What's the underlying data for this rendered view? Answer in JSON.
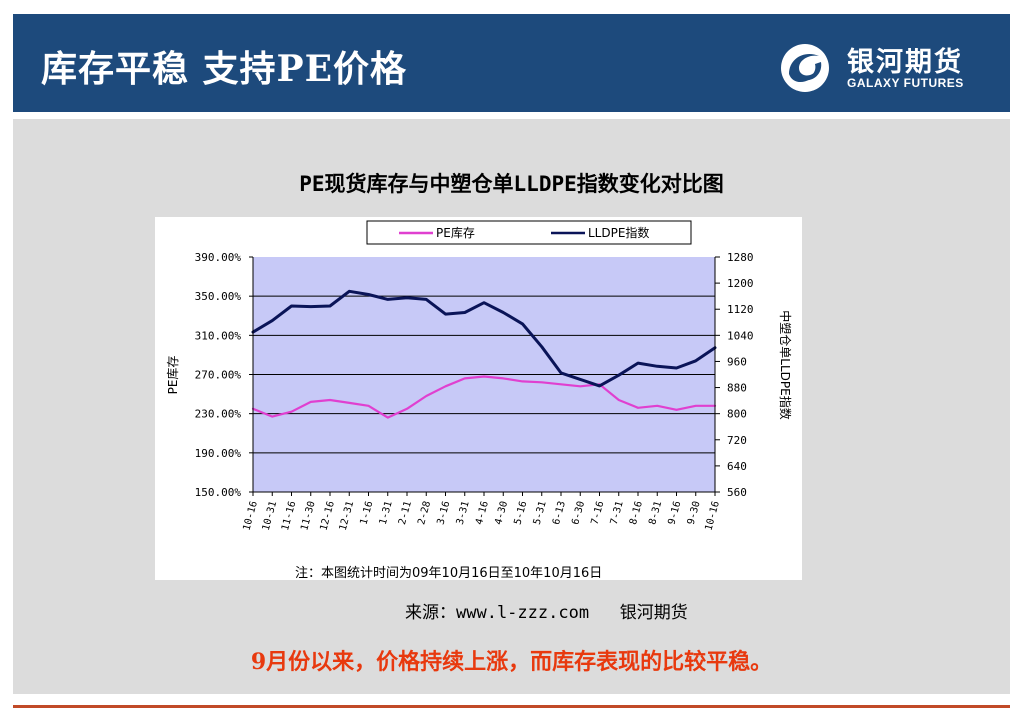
{
  "header": {
    "title": "库存平稳  支持PE价格",
    "logo_cn": "银河期货",
    "logo_en": "GALAXY FUTURES",
    "background": "#1d4a7c"
  },
  "chart_title": "PE现货库存与中塑仓单LLDPE指数变化对比图",
  "source": "来源：www.l-zzz.com   银河期货",
  "conclusion": "9月份以来，价格持续上涨，而库存表现的比较平稳。",
  "colors": {
    "accent_red": "#e8390e",
    "plot_bg": "#c7c9f7",
    "pe_series": "#e040d0",
    "lldpe_series": "#0a1458"
  },
  "chart_data": {
    "type": "line",
    "title": "PE现货库存与中塑仓单LLDPE指数变化对比图",
    "note": "注：本图统计时间为09年10月16日至10年10月16日",
    "ylabel_left": "PE库存",
    "ylabel_right": "中塑仓单LLDPE指数",
    "ylim_left": [
      1.5,
      3.9
    ],
    "ylim_right": [
      560,
      1280
    ],
    "yticks_left": [
      "390.00%",
      "350.00%",
      "310.00%",
      "270.00%",
      "230.00%",
      "190.00%",
      "150.00%"
    ],
    "yticks_right": [
      "1280",
      "1200",
      "1120",
      "1040",
      "960",
      "880",
      "800",
      "720",
      "640",
      "560"
    ],
    "categories": [
      "10-16",
      "10-31",
      "11-16",
      "11-30",
      "12-16",
      "12-31",
      "1-16",
      "1-31",
      "2-11",
      "2-28",
      "3-16",
      "3-31",
      "4-16",
      "4-30",
      "5-16",
      "5-31",
      "6-13",
      "6-30",
      "7-16",
      "7-31",
      "8-16",
      "8-31",
      "9-16",
      "9-30",
      "10-16"
    ],
    "legend_position": "top-center",
    "grid": true,
    "series": [
      {
        "name": "PE库存",
        "axis": "left",
        "color": "#e040d0",
        "values": [
          2.35,
          2.27,
          2.32,
          2.42,
          2.44,
          2.41,
          2.38,
          2.26,
          2.35,
          2.48,
          2.58,
          2.66,
          2.68,
          2.66,
          2.63,
          2.62,
          2.6,
          2.58,
          2.6,
          2.44,
          2.36,
          2.38,
          2.34,
          2.38,
          2.38
        ]
      },
      {
        "name": "LLDPE指数",
        "axis": "right",
        "color": "#0a1458",
        "values": [
          1050,
          1085,
          1130,
          1128,
          1130,
          1175,
          1165,
          1150,
          1155,
          1150,
          1105,
          1110,
          1140,
          1110,
          1075,
          1005,
          925,
          905,
          885,
          918,
          955,
          945,
          940,
          962,
          1002
        ]
      }
    ]
  }
}
